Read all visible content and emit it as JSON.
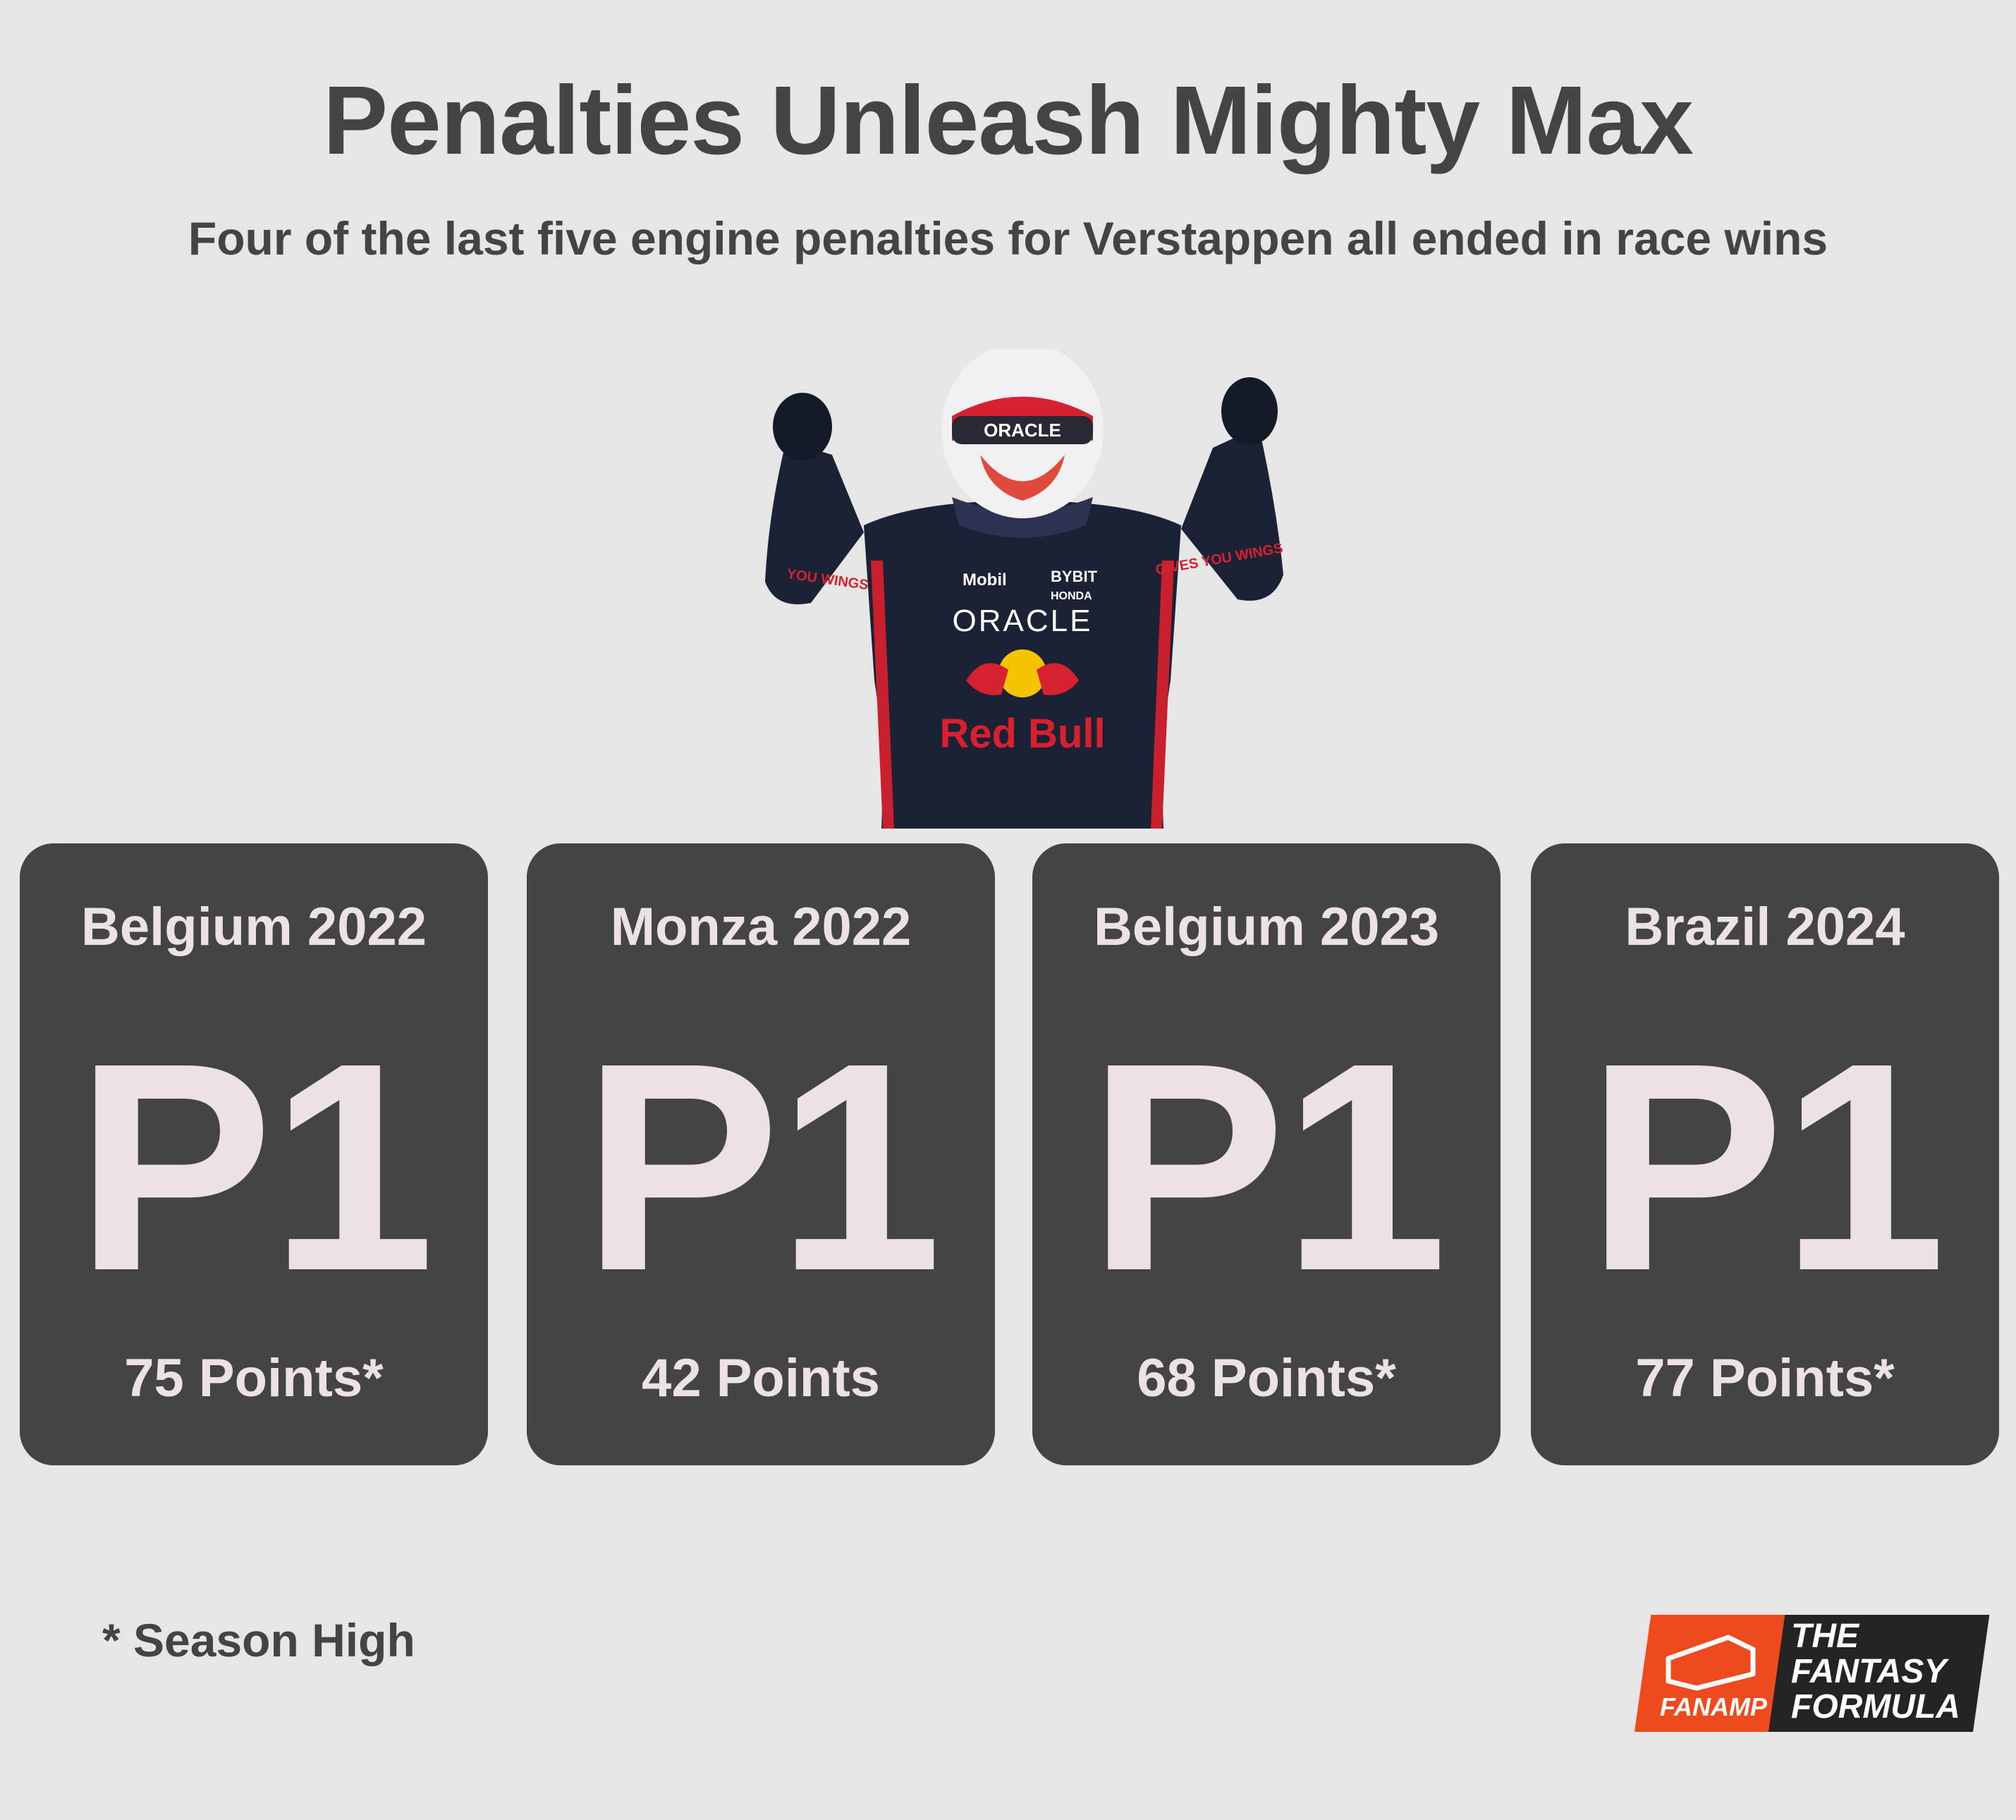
{
  "title": "Penalties Unleash Mighty Max",
  "subtitle": "Four of the last five engine penalties for Verstappen all ended in race wins",
  "driver_image": {
    "icon": "celebrating-driver-illustration",
    "suit_logos": [
      "ORACLE",
      "Red Bull",
      "Mobil",
      "BYBIT",
      "HONDA",
      "GIVES YOU WINGS"
    ]
  },
  "cards": [
    {
      "race": "Belgium 2022",
      "position": "P1",
      "points": "75 Points*"
    },
    {
      "race": "Monza 2022",
      "position": "P1",
      "points": "42 Points"
    },
    {
      "race": "Belgium 2023",
      "position": "P1",
      "points": "68 Points*"
    },
    {
      "race": "Brazil 2024",
      "position": "P1",
      "points": "77 Points*"
    }
  ],
  "footnote": "* Season High",
  "logo": {
    "brand": "FANAMP",
    "line1": "THE",
    "line2": "FANTASY",
    "line3": "FORMULA"
  },
  "colors": {
    "background": "#e6e6e6",
    "card": "#444444",
    "card_text": "#ece2e4",
    "heading": "#444444",
    "logo_orange": "#ee4a1e",
    "logo_dark": "#242424"
  }
}
